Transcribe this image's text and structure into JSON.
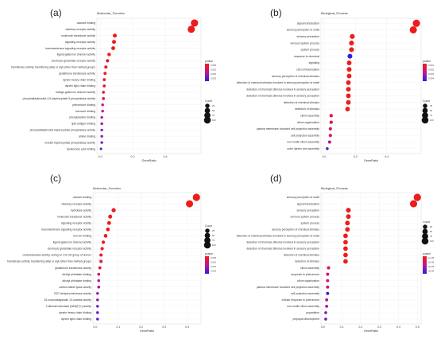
{
  "chart_data": [
    {
      "panel_label": "(a)",
      "type": "scatter",
      "title": "Molecular_Function",
      "xlabel": "GeneRatio",
      "xticks": [
        "0.0",
        "0.2",
        "0.4"
      ],
      "xlim": [
        -0.02,
        0.62
      ],
      "categories": [
        "odorant binding",
        "olfactory receptor activity",
        "molecular transducer activity",
        "signaling receptor activity",
        "transmembrane signaling receptor activity",
        "ligand-gated ion channel activity",
        "ionotropic glutamate receptor activity",
        "transferase activity, transferring alkyl or aryl (other than methyl) groups",
        "glutathione transferase activity",
        "dynein heavy chain binding",
        "dynein light chain binding",
        "voltage-gated ion channel activity",
        "phosphatidylinositol-4,5-bisphosphate 5-phosphatase activity",
        "pheromone binding",
        "hormone binding",
        "phenylalanine binding",
        "lipid antigen binding",
        "phosphatidylinositol bisphosphate phosphatase activity",
        "amine binding",
        "inositol trisphosphate phosphatase activity",
        "lipoteichoic acid binding"
      ],
      "gene_ratio": [
        0.58,
        0.56,
        0.09,
        0.085,
        0.08,
        0.055,
        0.045,
        0.035,
        0.03,
        0.025,
        0.025,
        0.02,
        0.02,
        0.015,
        0.015,
        0.01,
        0.01,
        0.01,
        0.01,
        0.01,
        0.005
      ],
      "pvalue_scale": [
        1,
        1,
        1,
        1,
        1,
        1,
        1,
        0.95,
        0.95,
        0.85,
        0.8,
        0.8,
        0.75,
        0.6,
        0.55,
        0.45,
        0.3,
        0.3,
        0.25,
        0.15,
        0.1
      ],
      "count": [
        120,
        115,
        18,
        17,
        16,
        11,
        9,
        7,
        6,
        5,
        5,
        4,
        4,
        3,
        3,
        2,
        2,
        2,
        2,
        2,
        1
      ],
      "size_legend": {
        "title": "Count",
        "labels": [
          "25",
          "50",
          "75",
          "100"
        ]
      },
      "color_legend": {
        "title": "pvalue",
        "labels": [
          "0.005",
          "0.010",
          "0.015",
          "0.020"
        ]
      }
    },
    {
      "panel_label": "(b)",
      "type": "scatter",
      "title": "Biological_Process",
      "xlabel": "GeneRatio",
      "xticks": [
        "0.0",
        "0.2",
        "0.4"
      ],
      "xlim": [
        -0.02,
        0.62
      ],
      "categories": [
        "signal transduction",
        "sensory perception of smell",
        "sensory perception",
        "nervous system process",
        "system process",
        "response to chemical",
        "signaling",
        "cell communication",
        "sensory perception of chemical stimulus",
        "detection of chemical stimulus involved in sensory perception of smell",
        "detection of chemical stimulus involved in sensory perception",
        "detection of chemical stimulus involved in sensory perception",
        "detection of chemical stimulus",
        "detection of stimulus",
        "cilium assembly",
        "cilium organization",
        "plasma membrane bounded cell projection assembly",
        "cell projection assembly",
        "non-motile cilium assembly",
        "outer dynein arm assembly"
      ],
      "gene_ratio": [
        0.59,
        0.57,
        0.18,
        0.175,
        0.175,
        0.165,
        0.16,
        0.16,
        0.16,
        0.155,
        0.155,
        0.155,
        0.155,
        0.15,
        0.045,
        0.045,
        0.04,
        0.04,
        0.035,
        0.02
      ],
      "pvalue_scale": [
        1,
        1,
        1,
        1,
        1,
        -1,
        1,
        1,
        1,
        1,
        1,
        1,
        1,
        1,
        0.8,
        0.8,
        0.7,
        0.7,
        0.5,
        0.1
      ],
      "count": [
        120,
        115,
        37,
        36,
        36,
        34,
        33,
        33,
        33,
        32,
        32,
        32,
        32,
        31,
        9,
        9,
        8,
        8,
        7,
        4
      ],
      "size_legend": {
        "title": "Count",
        "labels": [
          "25",
          "50",
          "75",
          "100"
        ]
      },
      "color_legend": {
        "title": "pvalue",
        "labels": [
          "0.001",
          "0.002",
          "0.003",
          "0.004"
        ]
      }
    },
    {
      "panel_label": "(c)",
      "type": "scatter",
      "title": "Molecular_Function",
      "xlabel": "GeneRatio",
      "xticks": [
        "0.0",
        "0.1",
        "0.2",
        "0.3",
        "0.4"
      ],
      "xlim": [
        -0.01,
        0.46
      ],
      "categories": [
        "odorant binding",
        "olfactory receptor activity",
        "hydrolase activity",
        "molecular transducer activity",
        "signaling receptor activity",
        "transmembrane signaling receptor activity",
        "iron ion binding",
        "ligand-gated ion channel activity",
        "ionotropic glutamate receptor activity",
        "oxidoreductase activity, acting on CH-OH group of donors",
        "transferase activity, transferring alkyl or aryl (other than methyl) groups",
        "glutathione transferase activity",
        "diethyl phthalate binding",
        "dibutyl phthalate binding",
        "carbon-halide lyase activity",
        "DDT-dehydrochlorinase activity",
        "15-oxoprostaglandin 13-oxidase activity",
        "2-alkenal reductase [NAD(P)+] activity",
        "dynein heavy chain binding",
        "dynein light chain binding"
      ],
      "gene_ratio": [
        0.44,
        0.41,
        0.08,
        0.065,
        0.06,
        0.055,
        0.045,
        0.035,
        0.03,
        0.025,
        0.025,
        0.02,
        0.015,
        0.015,
        0.015,
        0.01,
        0.01,
        0.01,
        0.01,
        0.01
      ],
      "pvalue_scale": [
        1,
        1,
        0.95,
        1,
        1,
        1,
        0.95,
        0.95,
        0.95,
        0.9,
        0.85,
        0.85,
        0.55,
        0.5,
        0.4,
        0.35,
        0.25,
        0.2,
        0.15,
        0.1
      ],
      "count": [
        120,
        112,
        22,
        18,
        16,
        15,
        12,
        9,
        8,
        7,
        7,
        5,
        4,
        4,
        4,
        3,
        3,
        3,
        3,
        3
      ],
      "size_legend": {
        "title": "Count",
        "labels": [
          "25",
          "50",
          "75",
          "100"
        ]
      },
      "color_legend": {
        "title": "pvalue",
        "labels": [
          "0.005",
          "0.010",
          "0.015",
          "0.020"
        ]
      }
    },
    {
      "panel_label": "(d)",
      "type": "scatter",
      "title": "Biological_Process",
      "xlabel": "GeneRatio",
      "xticks": [
        "0.0",
        "0.1",
        "0.2",
        "0.3",
        "0.4",
        "0.5"
      ],
      "xlim": [
        -0.01,
        0.52
      ],
      "categories": [
        "sensory perception of smell",
        "signal transduction",
        "sensory perception",
        "nervous system process",
        "system process",
        "sensory perception of chemical stimulus",
        "detection of chemical stimulus involved in sensory perception of smell",
        "detection of chemical stimulus involved in sensory perception",
        "detection of chemical stimulus involved in sensory perception",
        "detection of chemical stimulus",
        "detection of stimulus",
        "cilium assembly",
        "response to pheromone",
        "cilium organization",
        "plasma membrane bounded cell projection assembly",
        "cell projection assembly",
        "cellular response to pheromone",
        "non-motile cilium assembly",
        "pupariation",
        "prepupal development"
      ],
      "gene_ratio": [
        0.5,
        0.48,
        0.135,
        0.135,
        0.13,
        0.13,
        0.12,
        0.12,
        0.12,
        0.12,
        0.12,
        0.03,
        0.025,
        0.025,
        0.025,
        0.025,
        0.02,
        0.02,
        0.015,
        0.015
      ],
      "pvalue_scale": [
        1,
        1,
        1,
        1,
        1,
        1,
        1,
        1,
        1,
        1,
        1,
        0.75,
        0.6,
        0.6,
        0.55,
        -1,
        0.45,
        0.4,
        0.3,
        0.25
      ],
      "count": [
        120,
        115,
        33,
        33,
        32,
        32,
        29,
        29,
        29,
        29,
        29,
        7,
        6,
        6,
        6,
        6,
        5,
        5,
        4,
        4
      ],
      "size_legend": {
        "title": "Count",
        "labels": [
          "25",
          "50",
          "75",
          "100"
        ]
      },
      "color_legend": {
        "title": "pvalue",
        "labels": [
          "1e-05",
          "2e-05",
          "3e-05",
          "4e-05"
        ]
      }
    }
  ]
}
